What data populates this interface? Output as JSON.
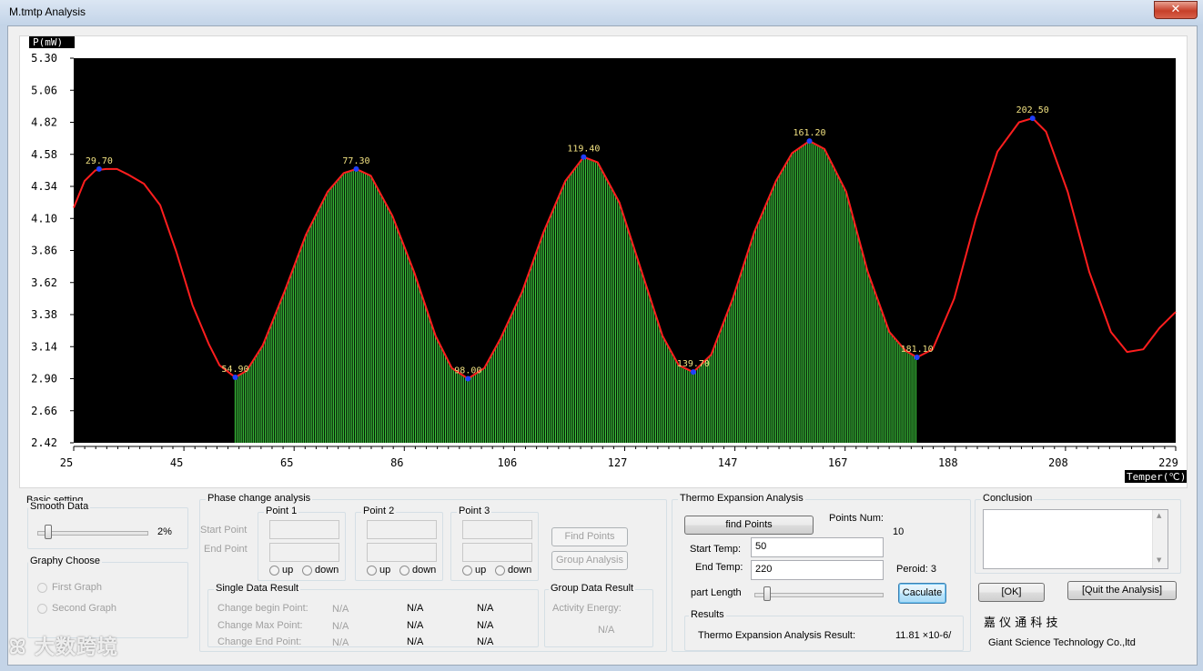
{
  "window": {
    "title": "M.tmtp  Analysis"
  },
  "chart_data": {
    "type": "line",
    "ylabel": "P(mW)",
    "xlabel": "Temper(℃)",
    "xlim": [
      25,
      229
    ],
    "ylim": [
      2.42,
      5.3
    ],
    "yticks": [
      "5.30",
      "5.06",
      "4.82",
      "4.58",
      "4.34",
      "4.10",
      "3.86",
      "3.62",
      "3.38",
      "3.14",
      "2.90",
      "2.66",
      "2.42"
    ],
    "xticks": [
      "25",
      "45",
      "65",
      "86",
      "106",
      "127",
      "147",
      "167",
      "188",
      "208",
      "229"
    ],
    "series": [
      {
        "x": [
          25,
          27,
          29,
          31,
          33,
          35,
          38,
          41,
          44,
          47,
          50,
          52,
          54.9,
          57,
          60,
          64,
          68,
          72,
          75,
          77.3,
          80,
          84,
          88,
          92,
          95,
          98,
          101,
          104,
          108,
          112,
          116,
          119.4,
          122,
          126,
          130,
          134,
          137,
          139.7,
          143,
          147,
          151,
          155,
          158,
          161.2,
          164,
          168,
          172,
          176,
          179,
          181.1,
          184,
          188,
          192,
          196,
          200,
          202.5,
          205,
          209,
          213,
          217,
          220,
          223,
          226,
          229
        ],
        "y": [
          4.18,
          4.38,
          4.46,
          4.47,
          4.47,
          4.43,
          4.36,
          4.2,
          3.85,
          3.45,
          3.16,
          3.0,
          2.91,
          2.96,
          3.15,
          3.55,
          3.98,
          4.3,
          4.44,
          4.47,
          4.42,
          4.12,
          3.7,
          3.22,
          2.98,
          2.9,
          2.98,
          3.2,
          3.55,
          4.0,
          4.38,
          4.56,
          4.52,
          4.22,
          3.72,
          3.22,
          3.0,
          2.95,
          3.08,
          3.5,
          4.0,
          4.38,
          4.59,
          4.68,
          4.62,
          4.3,
          3.7,
          3.25,
          3.11,
          3.06,
          3.12,
          3.5,
          4.1,
          4.6,
          4.82,
          4.85,
          4.75,
          4.3,
          3.7,
          3.25,
          3.1,
          3.12,
          3.28,
          3.4
        ]
      }
    ],
    "peak_labels": [
      {
        "x": 29.7,
        "y": 4.47,
        "label": "29.70"
      },
      {
        "x": 54.9,
        "y": 2.91,
        "label": "54.90"
      },
      {
        "x": 77.3,
        "y": 4.47,
        "label": "77.30"
      },
      {
        "x": 98.0,
        "y": 2.9,
        "label": "98.00"
      },
      {
        "x": 119.4,
        "y": 4.56,
        "label": "119.40"
      },
      {
        "x": 139.7,
        "y": 2.95,
        "label": "139.70"
      },
      {
        "x": 161.2,
        "y": 4.68,
        "label": "161.20"
      },
      {
        "x": 181.1,
        "y": 3.06,
        "label": "181.10"
      },
      {
        "x": 202.5,
        "y": 4.85,
        "label": "202.50"
      }
    ],
    "fill_range": [
      54.9,
      181.1
    ],
    "colors": {
      "background": "#000000",
      "line": "#ff1e1e",
      "fill": "#3cc83c",
      "marker": "#2040ff",
      "label": "#f0e080",
      "axes": "#000000"
    }
  },
  "basic": {
    "title": "Basic setting",
    "smooth_label": "Smooth Data",
    "smooth_value": "2%",
    "smooth_level": 0.1,
    "graphy_label": "Graphy Choose",
    "first_graph": "First Graph",
    "second_graph": "Second Graph"
  },
  "phase": {
    "title": "Phase change analysis",
    "start_point": "Start Point",
    "end_point": "End Point",
    "point1": "Point 1",
    "point2": "Point 2",
    "point3": "Point 3",
    "up": "up",
    "down": "down",
    "find_points": "Find Points",
    "group_analysis": "Group Analysis",
    "single_title": "Single Data Result",
    "change_begin": "Change begin Point:",
    "change_max": "Change Max   Point:",
    "change_end": "Change End   Point:",
    "na": "N/A",
    "group_title": "Group Data Result",
    "activity_energy": "Activity Energy:"
  },
  "thermo": {
    "title": "Thermo Expansion Analysis",
    "find_points": "find Points",
    "points_num_label": "Points Num:",
    "points_num": "10",
    "start_temp_label": "Start Temp:",
    "start_temp": "50",
    "end_temp_label": "End Temp:",
    "end_temp": "220",
    "peroid": "Peroid: 3",
    "part_length_label": "part Length",
    "part_length_level": 0.1,
    "caculate": "Caculate",
    "results_title": "Results",
    "result_label": "Thermo Expansion Analysis Result:",
    "result_value": "11.81 ×10-6/"
  },
  "conclusion": {
    "title": "Conclusion",
    "ok": "[OK]",
    "quit": "[Quit the Analysis]",
    "company_cn": "嘉 仪 通 科 技",
    "company_en": "Giant Science  Technology Co.,ltd"
  },
  "watermark": "大数跨境"
}
